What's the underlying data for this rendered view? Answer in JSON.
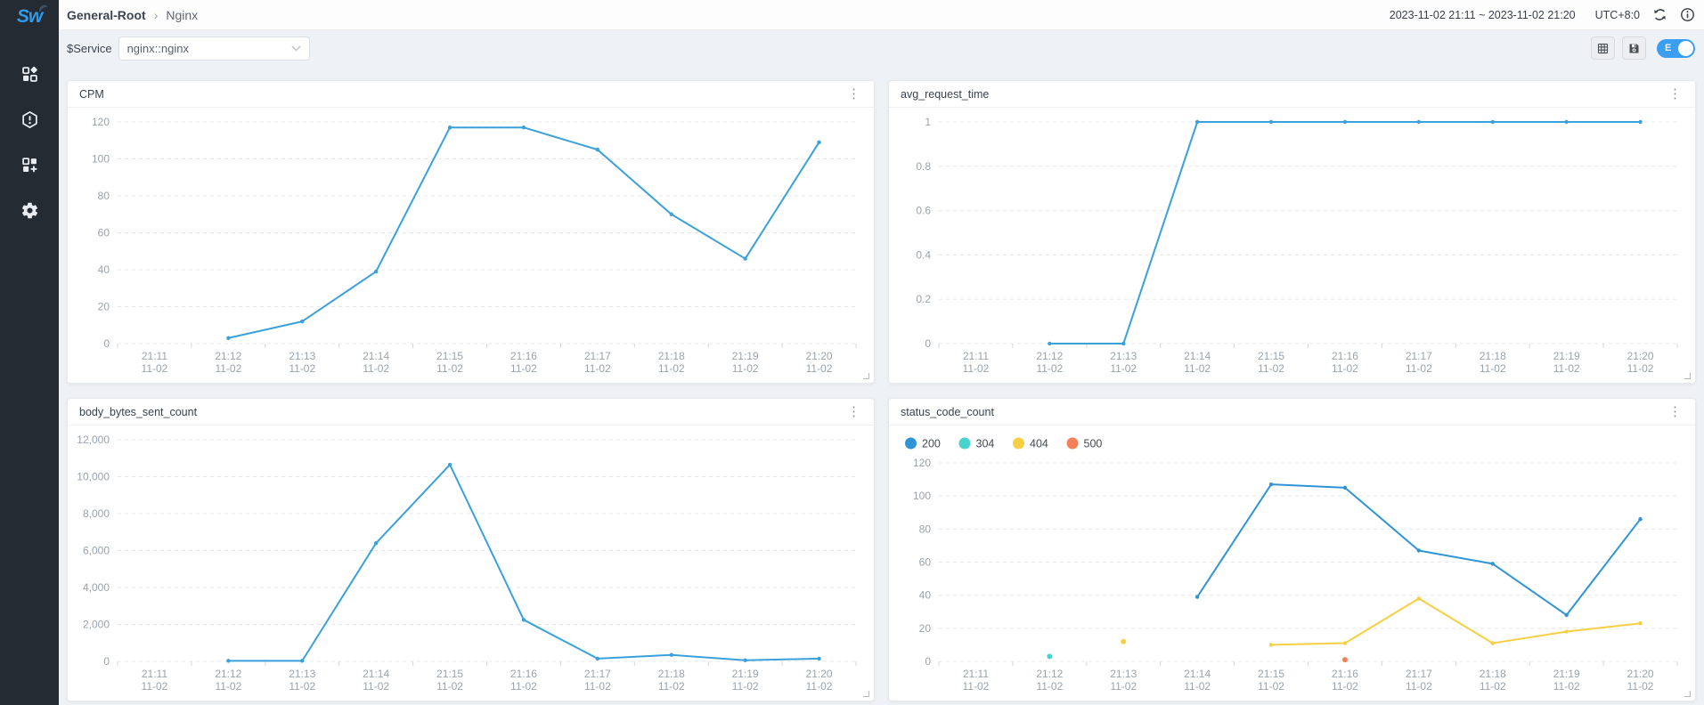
{
  "sidebar": {
    "logo_text": "Sw",
    "items": [
      {
        "id": "dashboards",
        "icon": "grid-diamond-icon"
      },
      {
        "id": "alerting",
        "icon": "hexagon-alert-icon"
      },
      {
        "id": "new-dashboard",
        "icon": "grid-plus-icon"
      },
      {
        "id": "settings",
        "icon": "gear-icon"
      }
    ]
  },
  "header": {
    "breadcrumb": {
      "root": "General-Root",
      "separator": "›",
      "current": "Nginx"
    },
    "time_range": "2023-11-02 21:11 ~ 2023-11-02 21:20",
    "timezone": "UTC+8:0"
  },
  "toolbar": {
    "service_label": "$Service",
    "service_value": "nginx::nginx",
    "edit_toggle_label": "E"
  },
  "card_menu_icon": "⋮",
  "chart_data": [
    {
      "type": "line",
      "title": "CPM",
      "categories": [
        "21:11",
        "21:12",
        "21:13",
        "21:14",
        "21:15",
        "21:16",
        "21:17",
        "21:18",
        "21:19",
        "21:20"
      ],
      "category_sub": "11-02",
      "ylim": [
        0,
        120
      ],
      "yticks": [
        0,
        20,
        40,
        60,
        80,
        100,
        120
      ],
      "ytick_labels": [
        "0",
        "20",
        "40",
        "60",
        "80",
        "100",
        "120"
      ],
      "grid": "dashed",
      "legend": false,
      "series": [
        {
          "name": "CPM",
          "color": "#3aa1db",
          "values": [
            null,
            3,
            12,
            39,
            117,
            117,
            105,
            70,
            46,
            109
          ]
        }
      ]
    },
    {
      "type": "line",
      "title": "avg_request_time",
      "categories": [
        "21:11",
        "21:12",
        "21:13",
        "21:14",
        "21:15",
        "21:16",
        "21:17",
        "21:18",
        "21:19",
        "21:20"
      ],
      "category_sub": "11-02",
      "ylim": [
        0,
        1
      ],
      "yticks": [
        0,
        0.2,
        0.4,
        0.6,
        0.8,
        1
      ],
      "ytick_labels": [
        "0",
        "0.2",
        "0.4",
        "0.6",
        "0.8",
        "1"
      ],
      "grid": "dashed",
      "legend": false,
      "series": [
        {
          "name": "avg_request_time",
          "color": "#3aa1db",
          "values": [
            null,
            0,
            0,
            1,
            1,
            1,
            1,
            1,
            1,
            1
          ]
        }
      ]
    },
    {
      "type": "line",
      "title": "body_bytes_sent_count",
      "categories": [
        "21:11",
        "21:12",
        "21:13",
        "21:14",
        "21:15",
        "21:16",
        "21:17",
        "21:18",
        "21:19",
        "21:20"
      ],
      "category_sub": "11-02",
      "ylim": [
        0,
        12000
      ],
      "yticks": [
        0,
        2000,
        4000,
        6000,
        8000,
        10000,
        12000
      ],
      "ytick_labels": [
        "0",
        "2,000",
        "4,000",
        "6,000",
        "8,000",
        "10,000",
        "12,000"
      ],
      "grid": "dashed",
      "legend": false,
      "series": [
        {
          "name": "body_bytes_sent_count",
          "color": "#3aa1db",
          "values": [
            null,
            30,
            30,
            6400,
            10650,
            2250,
            150,
            350,
            60,
            150
          ]
        }
      ]
    },
    {
      "type": "line",
      "title": "status_code_count",
      "categories": [
        "21:11",
        "21:12",
        "21:13",
        "21:14",
        "21:15",
        "21:16",
        "21:17",
        "21:18",
        "21:19",
        "21:20"
      ],
      "category_sub": "11-02",
      "ylim": [
        0,
        120
      ],
      "yticks": [
        0,
        20,
        40,
        60,
        80,
        100,
        120
      ],
      "ytick_labels": [
        "0",
        "20",
        "40",
        "60",
        "80",
        "100",
        "120"
      ],
      "grid": "dashed",
      "legend": true,
      "legend_position": "top",
      "series": [
        {
          "name": "200",
          "color": "#2f94d6",
          "values": [
            null,
            null,
            null,
            39,
            107,
            105,
            67,
            59,
            28,
            86
          ]
        },
        {
          "name": "304",
          "color": "#49d2ce",
          "values": [
            null,
            3,
            null,
            null,
            null,
            null,
            null,
            null,
            null,
            null
          ]
        },
        {
          "name": "404",
          "color": "#f6cf43",
          "values": [
            null,
            null,
            12,
            null,
            10,
            11,
            38,
            11,
            18,
            23
          ]
        },
        {
          "name": "500",
          "color": "#f77f57",
          "values": [
            null,
            null,
            null,
            null,
            null,
            1,
            null,
            null,
            null,
            null
          ]
        }
      ]
    }
  ]
}
